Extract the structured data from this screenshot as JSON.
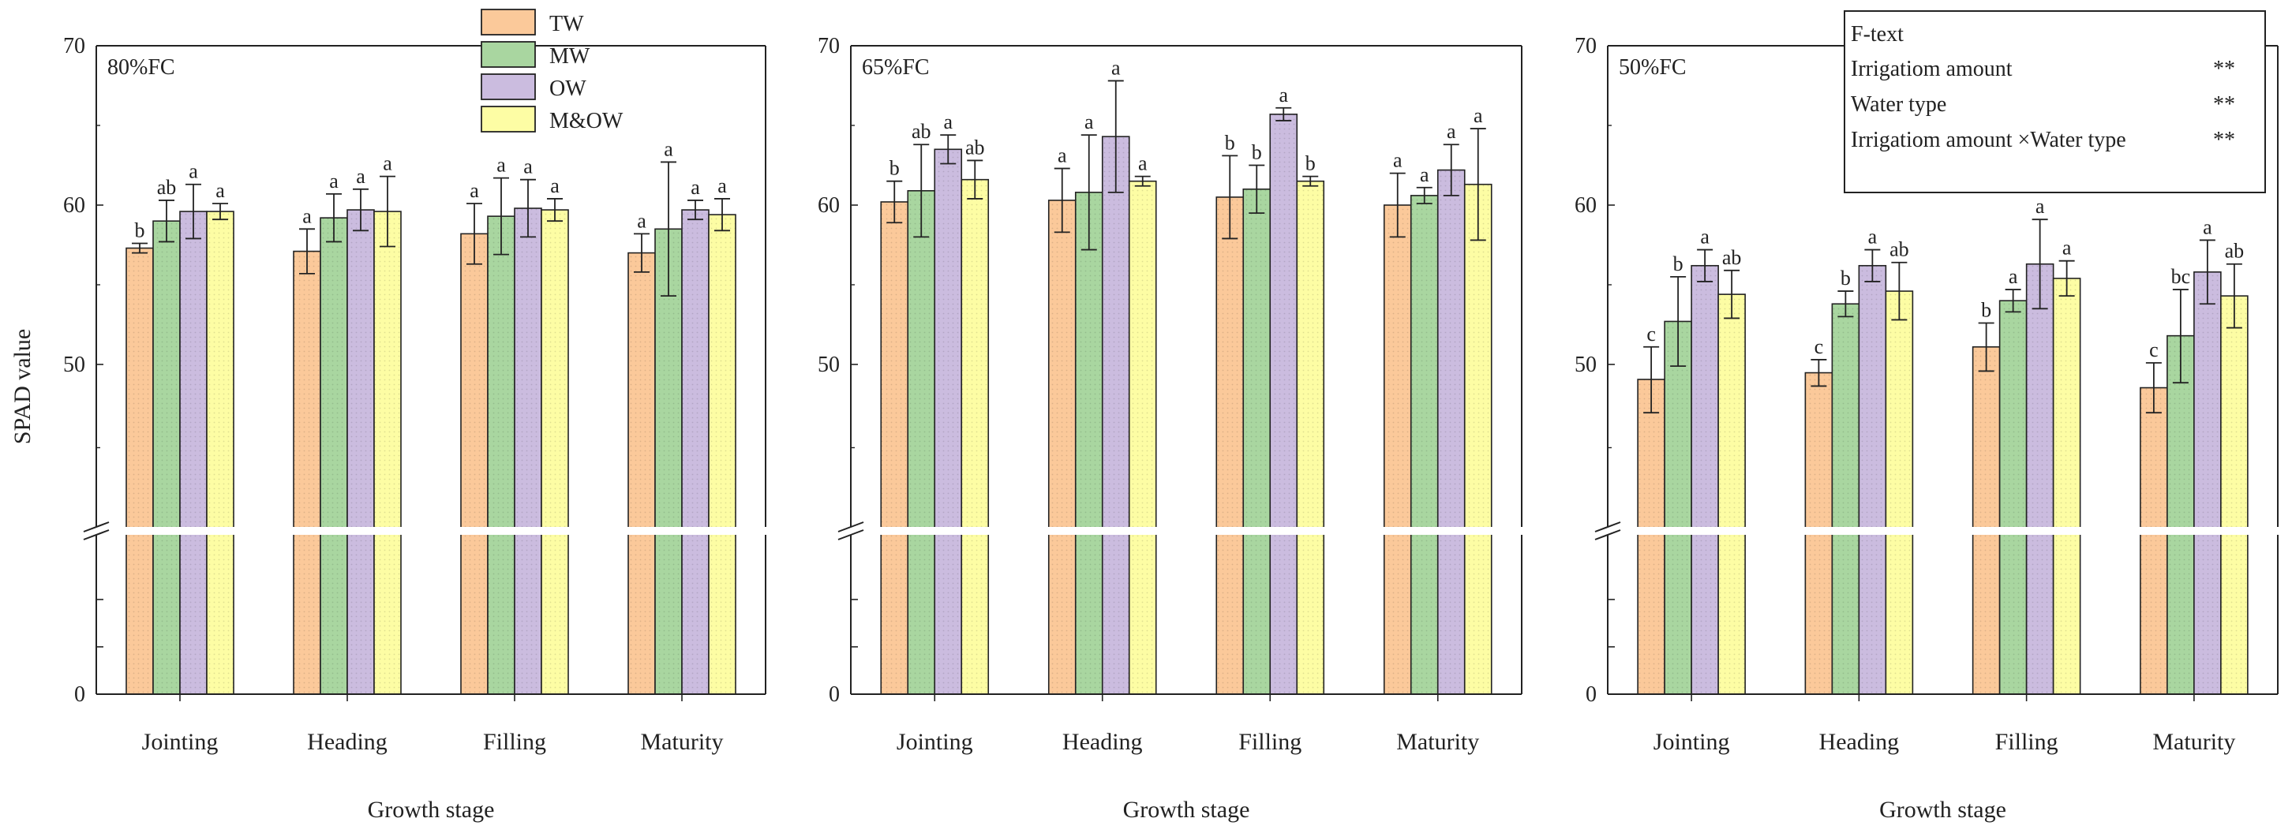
{
  "figure": {
    "shared_ylabel": "SPAD value",
    "legend": [
      "TW",
      "MW",
      "OW",
      "M&OW"
    ],
    "colors": {
      "TW": "#fbc99a",
      "MW": "#a9d6a0",
      "OW": "#cbbcdf",
      "M&OW": "#fdfda4",
      "axis": "#222222",
      "background": "#ffffff"
    },
    "f_test": {
      "title": "F-text",
      "rows": [
        {
          "label": "Irrigatiom amount",
          "value": "**"
        },
        {
          "label": "Water type",
          "value": "**"
        },
        {
          "label": "Irrigatiom amount ×Water type",
          "value": "**"
        }
      ]
    }
  },
  "chart_data": [
    {
      "type": "bar",
      "panel_title": "80%FC",
      "xlabel": "Growth stage",
      "ylabel": "SPAD value",
      "categories": [
        "Jointing",
        "Heading",
        "Filling",
        "Maturity"
      ],
      "y_ticks": [
        "0",
        "50",
        "60",
        "70"
      ],
      "axis_break": [
        40,
        50
      ],
      "ylim": [
        0,
        70
      ],
      "series": [
        {
          "name": "TW",
          "values": [
            57.3,
            57.1,
            58.2,
            57.0
          ],
          "errors": [
            0.3,
            1.4,
            1.9,
            1.2
          ],
          "letters": [
            "b",
            "a",
            "a",
            "a"
          ]
        },
        {
          "name": "MW",
          "values": [
            59.0,
            59.2,
            59.3,
            58.5
          ],
          "errors": [
            1.3,
            1.5,
            2.4,
            4.2
          ],
          "letters": [
            "ab",
            "a",
            "a",
            "a"
          ]
        },
        {
          "name": "OW",
          "values": [
            59.6,
            59.7,
            59.8,
            59.7
          ],
          "errors": [
            1.7,
            1.3,
            1.8,
            0.6
          ],
          "letters": [
            "a",
            "a",
            "a",
            "a"
          ]
        },
        {
          "name": "M&OW",
          "values": [
            59.6,
            59.6,
            59.7,
            59.4
          ],
          "errors": [
            0.5,
            2.2,
            0.7,
            1.0
          ],
          "letters": [
            "a",
            "a",
            "a",
            "a"
          ]
        }
      ]
    },
    {
      "type": "bar",
      "panel_title": "65%FC",
      "xlabel": "Growth stage",
      "ylabel": "SPAD value",
      "categories": [
        "Jointing",
        "Heading",
        "Filling",
        "Maturity"
      ],
      "y_ticks": [
        "0",
        "50",
        "60",
        "70"
      ],
      "axis_break": [
        40,
        50
      ],
      "ylim": [
        0,
        70
      ],
      "series": [
        {
          "name": "TW",
          "values": [
            60.2,
            60.3,
            60.5,
            60.0
          ],
          "errors": [
            1.3,
            2.0,
            2.6,
            2.0
          ],
          "letters": [
            "b",
            "a",
            "b",
            "a"
          ]
        },
        {
          "name": "MW",
          "values": [
            60.9,
            60.8,
            61.0,
            60.6
          ],
          "errors": [
            2.9,
            3.6,
            1.5,
            0.5
          ],
          "letters": [
            "ab",
            "a",
            "b",
            "a"
          ]
        },
        {
          "name": "OW",
          "values": [
            63.5,
            64.3,
            65.7,
            62.2
          ],
          "errors": [
            0.9,
            3.5,
            0.4,
            1.6
          ],
          "letters": [
            "a",
            "a",
            "a",
            "a"
          ]
        },
        {
          "name": "M&OW",
          "values": [
            61.6,
            61.5,
            61.5,
            61.3
          ],
          "errors": [
            1.2,
            0.3,
            0.3,
            3.5
          ],
          "letters": [
            "ab",
            "a",
            "b",
            "a"
          ]
        }
      ]
    },
    {
      "type": "bar",
      "panel_title": "50%FC",
      "xlabel": "Growth stage",
      "ylabel": "SPAD value",
      "categories": [
        "Jointing",
        "Heading",
        "Filling",
        "Maturity"
      ],
      "y_ticks": [
        "0",
        "50",
        "60",
        "70"
      ],
      "axis_break": [
        40,
        50
      ],
      "ylim": [
        0,
        70
      ],
      "series": [
        {
          "name": "TW",
          "values": [
            49.1,
            49.5,
            51.1,
            48.6
          ],
          "errors": [
            2.0,
            0.8,
            1.5,
            1.5
          ],
          "letters": [
            "c",
            "c",
            "b",
            "c"
          ]
        },
        {
          "name": "MW",
          "values": [
            52.7,
            53.8,
            54.0,
            51.8
          ],
          "errors": [
            2.8,
            0.8,
            0.7,
            2.9
          ],
          "letters": [
            "b",
            "b",
            "a",
            "bc"
          ]
        },
        {
          "name": "OW",
          "values": [
            56.2,
            56.2,
            56.3,
            55.8
          ],
          "errors": [
            1.0,
            1.0,
            2.8,
            2.0
          ],
          "letters": [
            "a",
            "a",
            "a",
            "a"
          ]
        },
        {
          "name": "M&OW",
          "values": [
            54.4,
            54.6,
            55.4,
            54.3
          ],
          "errors": [
            1.5,
            1.8,
            1.1,
            2.0
          ],
          "letters": [
            "ab",
            "ab",
            "a",
            "ab"
          ]
        }
      ]
    }
  ]
}
